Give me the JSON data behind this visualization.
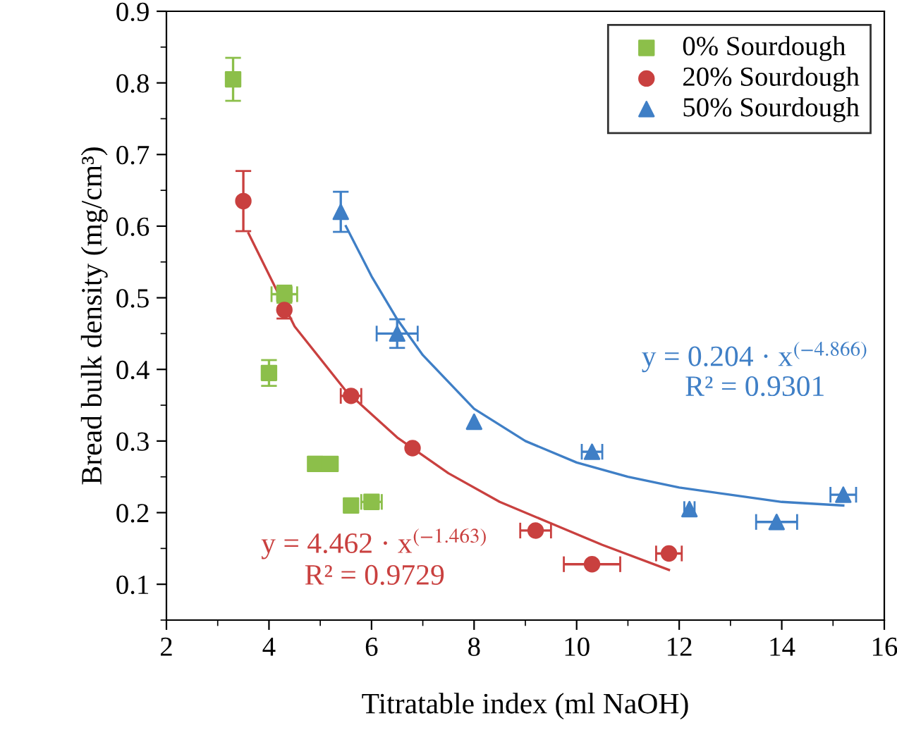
{
  "chart_data": {
    "type": "scatter",
    "xlabel": "Titratable index (ml NaOH)",
    "ylabel": "Bread bulk density (mg/cm³)",
    "xlim": [
      2,
      16
    ],
    "xticks": [
      2,
      4,
      6,
      8,
      10,
      12,
      14,
      16
    ],
    "ylim": [
      0.05,
      0.9
    ],
    "yticks": [
      0.1,
      0.2,
      0.3,
      0.4,
      0.5,
      0.6,
      0.7,
      0.8,
      0.9
    ],
    "grid": false,
    "legend": "top right",
    "series": [
      {
        "name": "0% Sourdough",
        "color": "#8cbf4a",
        "marker": "square",
        "x": [
          3.3,
          4.3,
          4.0,
          4.9,
          5.2,
          5.6,
          6.0
        ],
        "values": [
          0.805,
          0.505,
          0.395,
          0.268,
          0.268,
          0.21,
          0.215
        ],
        "errors": [
          0.03,
          0.012,
          0.018,
          0.01,
          null,
          null,
          null
        ],
        "xerrors": [
          null,
          0.25,
          null,
          null,
          null,
          0.1,
          0.2
        ]
      },
      {
        "name": "20% Sourdough",
        "color": "#c9403f",
        "marker": "circle",
        "x": [
          3.5,
          4.3,
          5.6,
          6.8,
          9.2,
          10.3,
          11.8
        ],
        "values": [
          0.635,
          0.483,
          0.363,
          0.29,
          0.175,
          0.128,
          0.143
        ],
        "errors": [
          0.042,
          0.012,
          null,
          null,
          null,
          null,
          null
        ],
        "xerrors": [
          null,
          null,
          0.2,
          null,
          0.3,
          0.55,
          0.25
        ]
      },
      {
        "name": "50% Sourdough",
        "color": "#3f7fc6",
        "marker": "triangle",
        "x": [
          5.4,
          6.5,
          8.0,
          10.3,
          12.2,
          13.9,
          15.2
        ],
        "values": [
          0.62,
          0.45,
          0.327,
          0.285,
          0.205,
          0.187,
          0.225
        ],
        "errors": [
          0.028,
          0.02,
          null,
          null,
          null,
          null,
          null
        ],
        "xerrors": [
          null,
          0.4,
          null,
          0.2,
          0.1,
          0.4,
          0.25
        ]
      },
      {
        "type": "line",
        "color": "#c9403f",
        "x": [
          3.6,
          4.5,
          5.5,
          6.5,
          7.5,
          8.5,
          9.5,
          10.5,
          11.8
        ],
        "values": [
          0.59,
          0.46,
          0.37,
          0.305,
          0.255,
          0.215,
          0.185,
          0.155,
          0.12
        ]
      },
      {
        "type": "line",
        "color": "#3f7fc6",
        "x": [
          5.5,
          6,
          6.5,
          7,
          8,
          9,
          10,
          11,
          12,
          13,
          14,
          15.2
        ],
        "values": [
          0.6,
          0.53,
          0.47,
          0.42,
          0.345,
          0.3,
          0.27,
          0.25,
          0.235,
          0.225,
          0.215,
          0.21
        ]
      }
    ],
    "annotations": [
      "y = 4.462 · x$^{(−1.463)}$",
      "R² = 0.9729",
      "y = 0.204 · x$^{(−4.866)}$",
      "R² = 0.9301"
    ]
  }
}
